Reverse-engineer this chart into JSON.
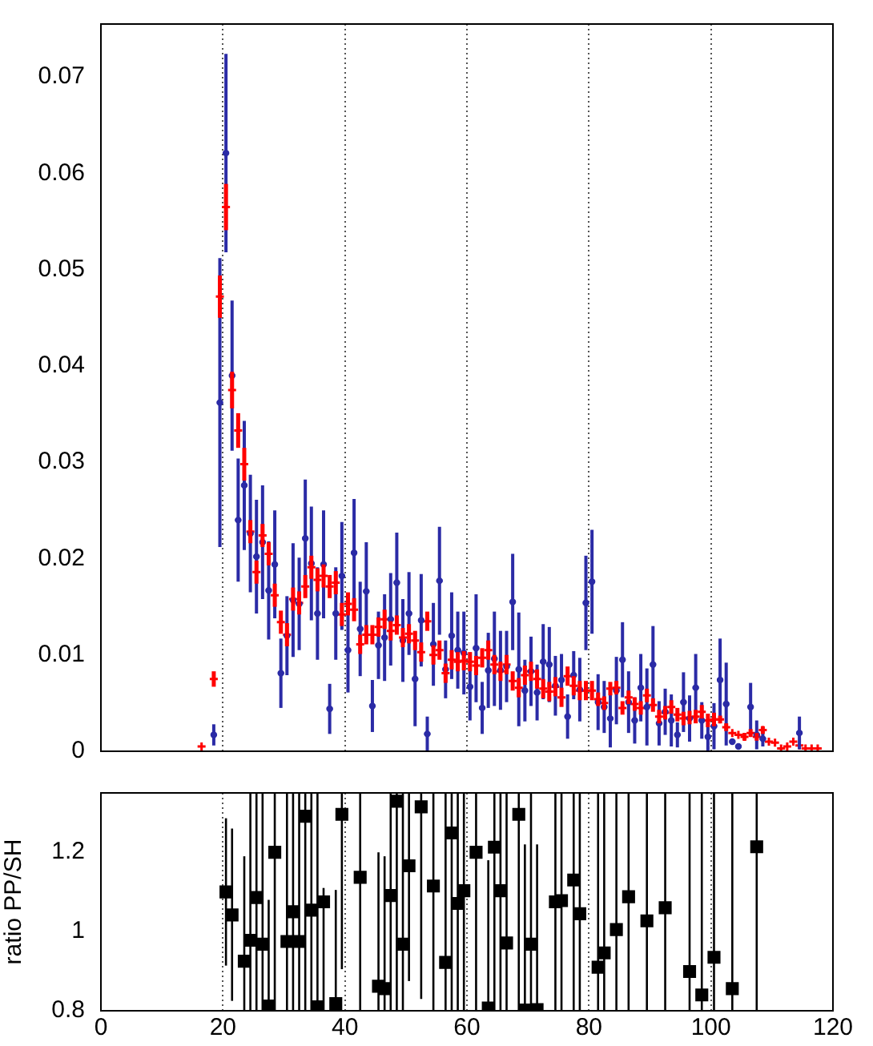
{
  "chart_data": [
    {
      "type": "scatter",
      "xlim": [
        0,
        120
      ],
      "xticks": [
        0,
        20,
        40,
        60,
        80,
        100,
        120
      ],
      "ylim": [
        0,
        0.0755
      ],
      "yticks": [
        0,
        0.01,
        0.02,
        0.03,
        0.04,
        0.05,
        0.06,
        0.07
      ],
      "tick_labels": "y",
      "grid": "x",
      "x": [
        16.5,
        17.5,
        18.5,
        19.5,
        20.5,
        21.5,
        22.5,
        23.5,
        24.5,
        25.5,
        26.5,
        27.5,
        28.5,
        29.5,
        30.5,
        31.5,
        32.5,
        33.5,
        34.5,
        35.5,
        36.5,
        37.5,
        38.5,
        39.5,
        40.5,
        41.5,
        42.5,
        43.5,
        44.5,
        45.5,
        46.5,
        47.5,
        48.5,
        49.5,
        50.5,
        51.5,
        52.5,
        53.5,
        54.5,
        55.5,
        56.5,
        57.5,
        58.5,
        59.5,
        60.5,
        61.5,
        62.5,
        63.5,
        64.5,
        65.5,
        66.5,
        67.5,
        68.5,
        69.5,
        70.5,
        71.5,
        72.5,
        73.5,
        74.5,
        75.5,
        76.5,
        77.5,
        78.5,
        79.5,
        80.5,
        81.5,
        82.5,
        83.5,
        84.5,
        85.5,
        86.5,
        87.5,
        88.5,
        89.5,
        90.5,
        91.5,
        92.5,
        93.5,
        94.5,
        95.5,
        96.5,
        97.5,
        98.5,
        99.5,
        100.5,
        101.5,
        102.5,
        103.5,
        104.5,
        105.5,
        106.5,
        107.5,
        108.5,
        109.5,
        110.5,
        111.5,
        112.5,
        113.5,
        114.5,
        115.5,
        116.5,
        117.5
      ],
      "series": [
        {
          "color": "#2b2ba6",
          "marker": "circle",
          "values": [
            null,
            null,
            0.0017,
            0.0362,
            0.0621,
            0.039,
            0.024,
            0.0276,
            0.0226,
            0.0202,
            0.0217,
            0.0167,
            0.0194,
            0.0081,
            0.012,
            0.0157,
            0.0153,
            0.0221,
            0.0195,
            0.0143,
            0.0194,
            0.0044,
            0.0143,
            0.0182,
            0.0105,
            0.0206,
            0.0127,
            0.0166,
            0.0047,
            0.011,
            0.0118,
            0.0137,
            0.0175,
            0.0115,
            0.0143,
            0.0075,
            0.0136,
            0.0018,
            0.0111,
            0.0177,
            0.0085,
            0.012,
            0.0105,
            0.0102,
            0.0067,
            0.0107,
            0.0045,
            0.0084,
            0.0096,
            0.0084,
            0.0088,
            0.0155,
            0.0085,
            0.0063,
            0.0083,
            0.0061,
            0.0093,
            0.009,
            0.0068,
            0.0074,
            0.0036,
            0.0079,
            0.0064,
            0.0154,
            0.0176,
            0.0051,
            0.0046,
            0.0034,
            0.0063,
            0.0095,
            0.0051,
            0.0032,
            0.0066,
            0.0046,
            0.009,
            0.0029,
            0.0041,
            0.0032,
            0.0017,
            0.0051,
            0.0034,
            0.0066,
            0.0032,
            0.0015,
            0.0026,
            0.0074,
            0.0049,
            0.001,
            0.0005,
            null,
            0.0046,
            0.0017,
            0.0013,
            null,
            null,
            null,
            null,
            null,
            0.0019,
            null,
            null,
            null
          ],
          "errors": [
            null,
            null,
            0.0011,
            0.015,
            0.0103,
            0.0078,
            0.0064,
            0.0067,
            0.0061,
            0.0059,
            0.0059,
            0.0051,
            0.0056,
            0.0036,
            0.0041,
            0.0059,
            0.0048,
            0.0061,
            0.0059,
            0.0048,
            0.0056,
            0.0026,
            0.0048,
            0.0056,
            0.0044,
            0.0056,
            0.0049,
            0.0051,
            0.0027,
            0.0035,
            0.0045,
            0.0048,
            0.0052,
            0.0043,
            0.0043,
            0.0049,
            0.0048,
            0.0018,
            0.0043,
            0.0056,
            0.003,
            0.0045,
            0.004,
            0.0043,
            0.0035,
            0.0056,
            0.0027,
            0.0039,
            0.0049,
            0.0041,
            0.0037,
            0.005,
            0.0059,
            0.0032,
            0.0036,
            0.0029,
            0.0039,
            0.0039,
            0.0031,
            0.0027,
            0.0023,
            0.0025,
            0.0033,
            0.0049,
            0.0054,
            0.0029,
            0.0027,
            0.003,
            0.0035,
            0.0039,
            0.0032,
            0.0024,
            0.0035,
            0.004,
            0.004,
            0.0023,
            0.0024,
            0.0027,
            0.0013,
            0.0031,
            0.0024,
            0.0035,
            0.0019,
            0.0015,
            0.0024,
            0.0043,
            0.0043,
            null,
            null,
            null,
            0.0025,
            0.0015,
            0.0008,
            null,
            null,
            null,
            null,
            null,
            0.0017,
            null,
            null,
            null
          ],
          "xerrors": [
            null,
            null,
            0.5,
            0.5,
            0.5,
            0.5,
            0.5,
            0.5,
            0.5,
            0.5,
            0.5,
            0.5,
            0.5,
            0.5,
            0.5,
            0.5,
            0.5,
            0.5,
            0.5,
            0.5,
            0.5,
            0.5,
            0.5,
            0.5,
            0.5,
            0.5,
            0.5,
            0.5,
            0.5,
            0.5,
            0.5,
            0.5,
            0.5,
            0.5,
            0.5,
            0.5,
            0.5,
            0.5,
            0.5,
            0.5,
            0.5,
            0.5,
            0.5,
            0.5,
            0.5,
            0.5,
            0.5,
            0.5,
            0.5,
            0.5,
            0.5,
            0.5,
            0.5,
            0.5,
            0.5,
            0.5,
            0.5,
            0.5,
            0.5,
            0.5,
            0.5,
            0.5,
            0.5,
            0.5,
            0.5,
            0.5,
            0.5,
            0.5,
            0.5,
            0.5,
            0.5,
            0.5,
            0.5,
            0.5,
            0.5,
            0.5,
            0.5,
            0.5,
            0.5,
            0.5,
            0.5,
            0.5,
            0.5,
            0.5,
            0.5,
            0.5,
            0.5,
            0.5,
            0.5,
            null,
            0.5,
            0.5,
            0.5,
            null,
            null,
            null,
            null,
            null,
            0.5,
            null,
            null,
            null
          ]
        },
        {
          "color": "#ff0000",
          "marker": "cross",
          "values": [
            0.0005,
            null,
            0.0075,
            0.0472,
            0.0565,
            0.0375,
            0.0333,
            0.0298,
            0.0228,
            0.0186,
            0.0224,
            0.0205,
            0.0162,
            0.0134,
            0.0121,
            0.0158,
            0.0154,
            0.0171,
            0.0191,
            0.0178,
            0.0182,
            0.0171,
            0.0175,
            0.0142,
            0.0153,
            0.0147,
            0.0111,
            0.0121,
            0.0121,
            0.0129,
            0.0137,
            0.0125,
            0.0131,
            0.0118,
            0.0122,
            0.0115,
            0.0103,
            0.0135,
            0.01,
            0.0105,
            0.0081,
            0.0095,
            0.0093,
            0.0094,
            0.0093,
            0.0089,
            0.0097,
            0.0105,
            0.009,
            0.0083,
            0.009,
            0.0073,
            0.0066,
            0.0079,
            0.0083,
            0.0075,
            0.0065,
            0.0062,
            0.0067,
            0.0056,
            0.0078,
            0.0068,
            0.0063,
            0.0063,
            0.0063,
            0.0054,
            0.005,
            0.0065,
            0.0066,
            0.0045,
            0.0056,
            0.0049,
            0.0045,
            0.0058,
            0.0048,
            0.0036,
            0.004,
            0.0046,
            0.0038,
            0.0034,
            0.0035,
            0.0036,
            0.0041,
            0.0032,
            0.0033,
            0.0033,
            0.0025,
            0.0019,
            0.0017,
            0.0015,
            0.0019,
            0.0015,
            0.0022,
            0.001,
            0.0009,
            0.0003,
            0.0005,
            0.001,
            0.0006,
            0.0003,
            0.0003,
            0.0003
          ],
          "errors": [
            null,
            null,
            0.0008,
            0.0022,
            0.0024,
            0.0019,
            0.0018,
            0.0017,
            0.0012,
            0.0012,
            0.0012,
            0.0012,
            0.0012,
            0.0012,
            0.0012,
            0.0012,
            0.0012,
            0.0012,
            0.0012,
            0.0012,
            0.0012,
            0.0012,
            0.0012,
            0.0012,
            0.0012,
            0.0012,
            0.001,
            0.001,
            0.001,
            0.001,
            0.001,
            0.001,
            0.001,
            0.001,
            0.001,
            0.001,
            0.001,
            0.001,
            0.001,
            0.001,
            0.001,
            0.001,
            0.001,
            0.001,
            0.001,
            0.001,
            0.001,
            0.001,
            0.001,
            0.001,
            0.001,
            0.001,
            0.001,
            0.001,
            0.001,
            0.001,
            0.001,
            0.001,
            0.001,
            0.001,
            0.001,
            0.001,
            0.001,
            0.001,
            0.001,
            0.0007,
            0.0007,
            0.0007,
            0.0007,
            0.0007,
            0.0007,
            0.0007,
            0.0007,
            0.0007,
            0.0007,
            0.0007,
            0.0007,
            0.0007,
            0.0007,
            0.0007,
            0.0007,
            0.0007,
            0.0007,
            0.0007,
            0.0007,
            0.0004,
            0.0004,
            null,
            null,
            0.0004,
            0.0004,
            0.0004,
            0.0004,
            null,
            null,
            null,
            null,
            null,
            null,
            null,
            null,
            null
          ]
        }
      ]
    },
    {
      "type": "scatter",
      "ylabel": "ratio PP/SH",
      "xlim": [
        0,
        120
      ],
      "xticks": [
        0,
        20,
        40,
        60,
        80,
        100,
        120
      ],
      "ylim": [
        0.8,
        1.35
      ],
      "yticks": [
        0.8,
        1,
        1.2
      ],
      "grid": "x",
      "marker": "square",
      "color": "#000000",
      "x": [
        20.5,
        21.5,
        23.5,
        24.5,
        25.5,
        26.5,
        27.5,
        28.5,
        30.5,
        31.5,
        32.5,
        33.5,
        34.5,
        35.5,
        36.5,
        38.5,
        39.5,
        42.5,
        45.5,
        46.5,
        47.5,
        48.5,
        49.5,
        50.5,
        52.5,
        54.5,
        56.5,
        57.5,
        58.5,
        59.5,
        61.5,
        63.5,
        64.5,
        65.5,
        66.5,
        68.5,
        69.5,
        70.5,
        71.5,
        74.5,
        75.5,
        77.5,
        78.5,
        81.5,
        82.5,
        84.5,
        86.5,
        89.5,
        92.5,
        96.5,
        98.5,
        100.5,
        103.5,
        107.5
      ],
      "values": [
        1.1,
        1.042,
        0.925,
        0.978,
        1.086,
        0.968,
        0.812,
        1.2,
        0.975,
        1.05,
        0.975,
        1.291,
        1.054,
        0.81,
        1.075,
        0.818,
        1.296,
        1.137,
        0.862,
        0.856,
        1.091,
        1.329,
        0.968,
        1.166,
        1.315,
        1.115,
        0.922,
        1.249,
        1.071,
        1.103,
        1.2,
        0.807,
        1.213,
        1.103,
        0.971,
        1.296,
        0.802,
        0.968,
        0.803,
        1.075,
        1.078,
        1.13,
        1.045,
        0.91,
        0.946,
        1.005,
        1.088,
        1.027,
        1.06,
        0.899,
        0.84,
        0.935,
        0.856,
        1.214
      ],
      "errors": [
        [
          0.914,
          1.286
        ],
        [
          0.825,
          1.26
        ],
        [
          0.8,
          1.19
        ],
        [
          0.8,
          1.35
        ],
        [
          0.8,
          1.35
        ],
        [
          0.8,
          1.35
        ],
        [
          0.8,
          1.08
        ],
        [
          0.8,
          1.35
        ],
        [
          0.8,
          1.35
        ],
        [
          0.8,
          1.35
        ],
        [
          0.8,
          1.35
        ],
        [
          0.8,
          1.35
        ],
        [
          0.8,
          1.35
        ],
        [
          0.8,
          1.35
        ],
        [
          0.8,
          1.11
        ],
        [
          0.8,
          1.105
        ],
        [
          0.905,
          1.35
        ],
        [
          0.8,
          1.35
        ],
        [
          0.8,
          1.2
        ],
        [
          0.8,
          1.19
        ],
        [
          0.8,
          1.35
        ],
        [
          0.8,
          1.35
        ],
        [
          0.8,
          1.35
        ],
        [
          0.875,
          1.35
        ],
        [
          0.83,
          1.35
        ],
        [
          0.8,
          1.35
        ],
        [
          0.8,
          1.35
        ],
        [
          0.8,
          1.35
        ],
        [
          0.8,
          1.35
        ],
        [
          0.8,
          1.35
        ],
        [
          0.8,
          1.35
        ],
        [
          0.8,
          1.18
        ],
        [
          0.8,
          1.35
        ],
        [
          0.8,
          1.35
        ],
        [
          0.8,
          1.35
        ],
        [
          0.8,
          1.35
        ],
        [
          0.8,
          1.22
        ],
        [
          0.8,
          1.35
        ],
        [
          0.8,
          1.22
        ],
        [
          0.8,
          1.35
        ],
        [
          0.8,
          1.35
        ],
        [
          0.8,
          1.35
        ],
        [
          0.8,
          1.35
        ],
        [
          0.8,
          1.35
        ],
        [
          0.8,
          1.35
        ],
        [
          0.8,
          1.35
        ],
        [
          0.8,
          1.35
        ],
        [
          0.8,
          1.35
        ],
        [
          0.8,
          1.35
        ],
        [
          0.8,
          1.35
        ],
        [
          0.8,
          1.35
        ],
        [
          0.8,
          1.35
        ],
        [
          0.8,
          1.35
        ],
        [
          0.8,
          1.35
        ]
      ]
    }
  ]
}
